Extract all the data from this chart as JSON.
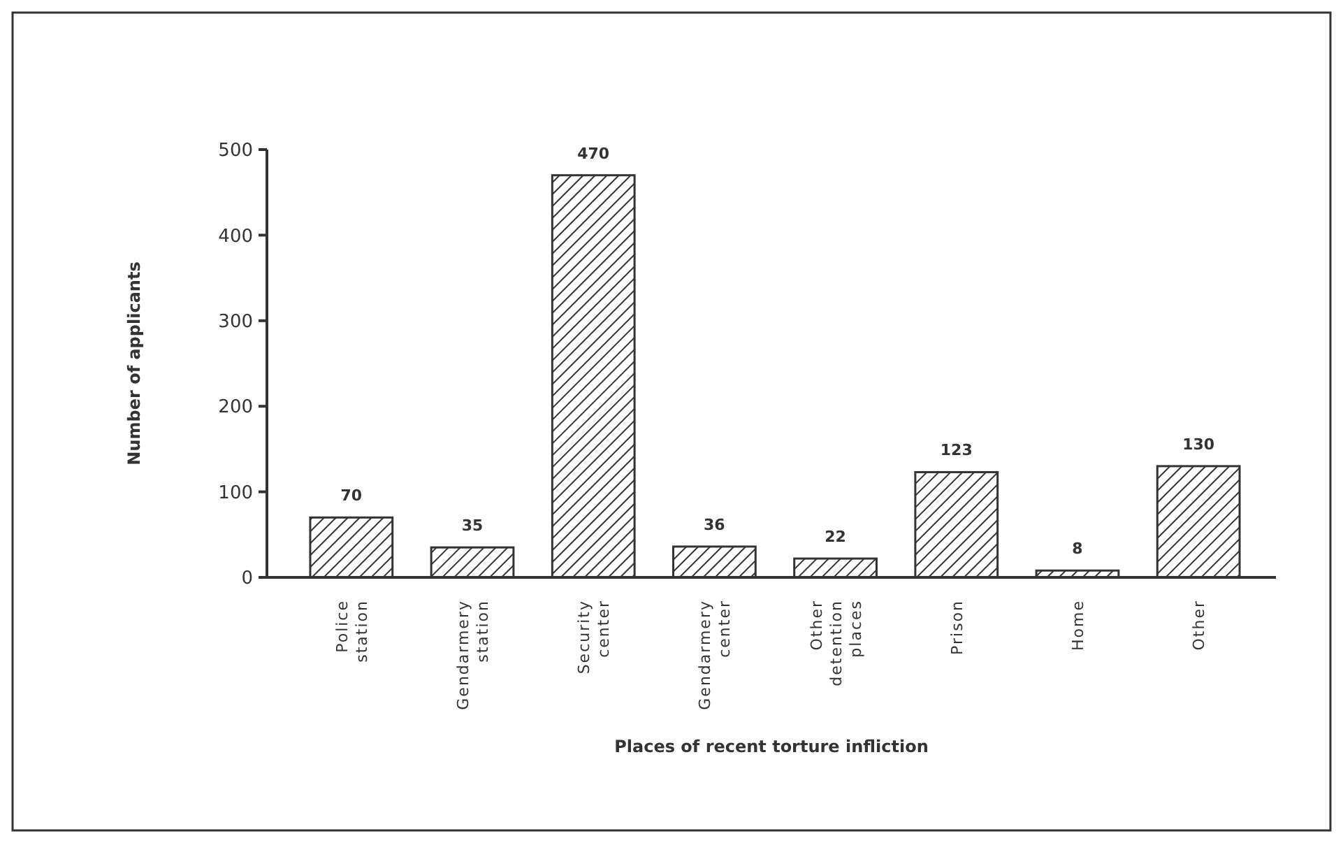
{
  "chart_data": {
    "type": "bar",
    "xlabel": "Places of recent torture infliction",
    "ylabel": "Number of applicants",
    "categories": [
      "Police station",
      "Gendarmery station",
      "Security center",
      "Gendarmery center",
      "Other detention places",
      "Prison",
      "Home",
      "Other"
    ],
    "values": [
      70,
      35,
      470,
      36,
      22,
      123,
      8,
      130
    ],
    "color": "#333333",
    "ylim": [
      0,
      500
    ],
    "yticks": [
      0,
      100,
      200,
      300,
      400,
      500
    ],
    "grid": false,
    "data_labels": true
  }
}
